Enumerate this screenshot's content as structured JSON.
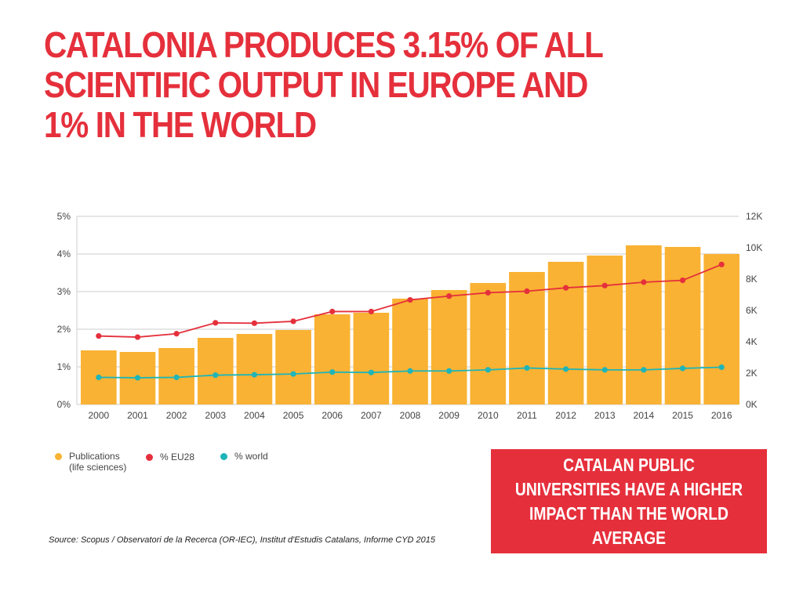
{
  "slide": {
    "title_lines": [
      "CATALONIA PRODUCES 3.15% OF ALL",
      "SCIENTIFIC OUTPUT IN EUROPE AND",
      "1% IN THE WORLD"
    ],
    "source": "Source: Scopus / Observatori de la Recerca (OR-IEC), Institut d'Estudis Catalans, Informe CYD 2015",
    "callout": "CATALAN PUBLIC UNIVERSITIES HAVE A HIGHER IMPACT THAN THE WORLD AVERAGE"
  },
  "legend": {
    "publications_line1": "Publications",
    "publications_line2": "(life sciences)",
    "eu28": "% EU28",
    "world": "% world"
  },
  "colors": {
    "bar": "#f9b233",
    "eu28": "#e5303c",
    "world": "#1fb5b8",
    "accent": "#e5303c",
    "grid": "#cccccc"
  },
  "chart_data": {
    "type": "bar",
    "title": "",
    "xlabel": "",
    "ylabel": "",
    "categories": [
      "2000",
      "2001",
      "2002",
      "2003",
      "2004",
      "2005",
      "2006",
      "2007",
      "2008",
      "2009",
      "2010",
      "2011",
      "2012",
      "2013",
      "2014",
      "2015",
      "2016"
    ],
    "y_left": {
      "ticks": [
        "0%",
        "1%",
        "2%",
        "3%",
        "4%",
        "5%"
      ],
      "ylim": [
        0,
        5
      ]
    },
    "y_right": {
      "ticks": [
        "0K",
        "2K",
        "4K",
        "6K",
        "8K",
        "10K",
        "12K"
      ],
      "ylim": [
        0,
        12000
      ]
    },
    "grid": true,
    "legend_position": "bottom-left",
    "series": [
      {
        "name": "Publications (life sciences)",
        "axis": "right",
        "kind": "bar",
        "values": [
          3450,
          3350,
          3600,
          4250,
          4500,
          4750,
          5750,
          5850,
          6750,
          7300,
          7750,
          8450,
          9100,
          9500,
          10150,
          10050,
          9600
        ]
      },
      {
        "name": "% EU28",
        "axis": "left",
        "kind": "line",
        "values": [
          1.82,
          1.79,
          1.88,
          2.17,
          2.16,
          2.21,
          2.47,
          2.47,
          2.78,
          2.88,
          2.97,
          3.01,
          3.1,
          3.16,
          3.25,
          3.3,
          3.72
        ]
      },
      {
        "name": "% world",
        "axis": "left",
        "kind": "line",
        "values": [
          0.72,
          0.71,
          0.72,
          0.78,
          0.79,
          0.81,
          0.86,
          0.85,
          0.89,
          0.89,
          0.92,
          0.97,
          0.94,
          0.92,
          0.92,
          0.96,
          0.99
        ]
      }
    ]
  }
}
